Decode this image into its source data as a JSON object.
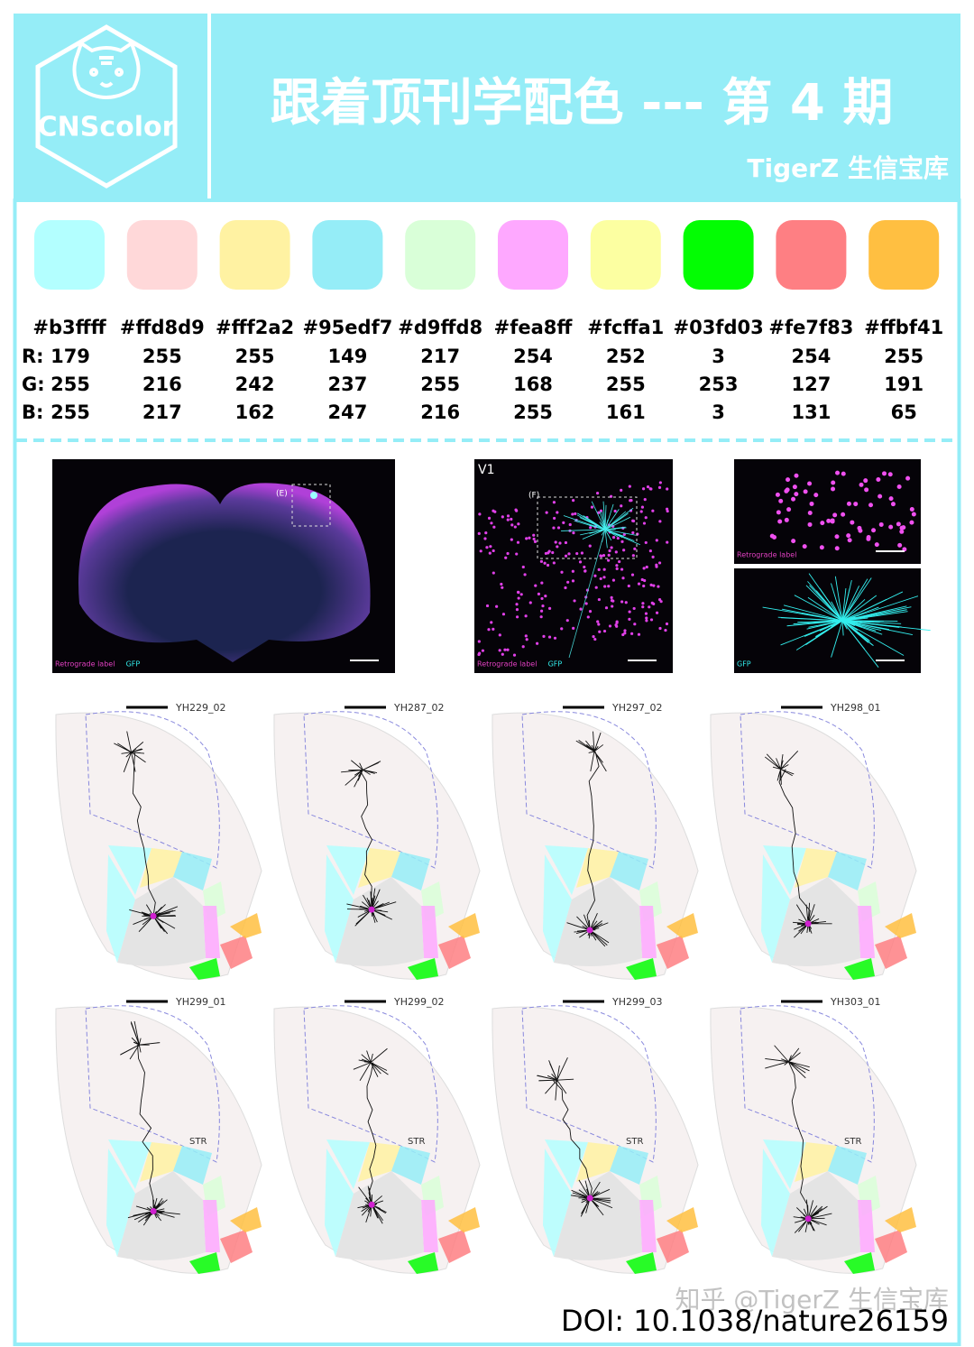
{
  "header": {
    "logo": "CNScolor",
    "title": "跟着顶刊学配色 --- 第 4 期",
    "subtitle": "TigerZ 生信宝库"
  },
  "palette": {
    "channel_labels": [
      "R:",
      "G:",
      "B:"
    ],
    "colors": [
      {
        "hex": "#b3ffff",
        "r": 179,
        "g": 255,
        "b": 255
      },
      {
        "hex": "#ffd8d9",
        "r": 255,
        "g": 216,
        "b": 217
      },
      {
        "hex": "#fff2a2",
        "r": 255,
        "g": 242,
        "b": 162
      },
      {
        "hex": "#95edf7",
        "r": 149,
        "g": 237,
        "b": 247
      },
      {
        "hex": "#d9ffd8",
        "r": 217,
        "g": 255,
        "b": 216
      },
      {
        "hex": "#fea8ff",
        "r": 254,
        "g": 168,
        "b": 255
      },
      {
        "hex": "#fcffa1",
        "r": 252,
        "g": 255,
        "b": 161
      },
      {
        "hex": "#03fd03",
        "r": 3,
        "g": 253,
        "b": 3
      },
      {
        "hex": "#fe7f83",
        "r": 254,
        "g": 127,
        "b": 131
      },
      {
        "hex": "#ffbf41",
        "r": 255,
        "g": 191,
        "b": 65
      }
    ]
  },
  "figure": {
    "panels": [
      {
        "labels": [
          "(E)"
        ],
        "legend": [
          "Retrograde label",
          "GFP"
        ]
      },
      {
        "labels": [
          "V1",
          "(F)"
        ],
        "legend": [
          "Retrograde label",
          "GFP"
        ]
      },
      {
        "labels": [],
        "legend": [
          "Retrograde label"
        ]
      },
      {
        "labels": [],
        "legend": [
          "GFP"
        ]
      }
    ]
  },
  "neurons": [
    {
      "id": "YH229_02"
    },
    {
      "id": "YH287_02"
    },
    {
      "id": "YH297_02"
    },
    {
      "id": "YH298_01"
    },
    {
      "id": "YH299_01",
      "region": "STR"
    },
    {
      "id": "YH299_02",
      "region": "STR"
    },
    {
      "id": "YH299_03",
      "region": "STR"
    },
    {
      "id": "YH303_01",
      "region": "STR"
    }
  ],
  "doi": "DOI: 10.1038/nature26159",
  "watermark": "知乎 @TigerZ 生信宝库"
}
